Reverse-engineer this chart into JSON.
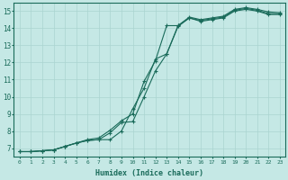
{
  "xlabel": "Humidex (Indice chaleur)",
  "bg_color": "#c5e8e5",
  "grid_color": "#aad4d0",
  "line_color": "#1a6b5a",
  "line1_x": [
    0,
    1,
    2,
    3,
    4,
    5,
    6,
    7,
    8,
    9,
    10,
    11,
    12,
    13,
    14,
    15,
    16,
    17,
    18,
    19,
    20,
    21,
    22,
    23
  ],
  "line1_y": [
    6.8,
    6.8,
    6.85,
    6.9,
    7.1,
    7.3,
    7.45,
    7.5,
    7.5,
    8.0,
    9.3,
    10.5,
    12.2,
    12.5,
    14.1,
    14.6,
    14.4,
    14.5,
    14.6,
    15.0,
    15.1,
    15.0,
    14.8,
    14.8
  ],
  "line2_x": [
    0,
    1,
    2,
    3,
    4,
    5,
    6,
    7,
    8,
    9,
    10,
    11,
    12,
    13,
    14,
    15,
    16,
    17,
    18,
    19,
    20,
    21,
    22,
    23
  ],
  "line2_y": [
    6.8,
    6.8,
    6.85,
    6.9,
    7.1,
    7.3,
    7.45,
    7.5,
    7.9,
    8.5,
    8.55,
    10.0,
    11.5,
    12.5,
    14.15,
    14.6,
    14.45,
    14.55,
    14.65,
    15.05,
    15.15,
    15.05,
    14.85,
    14.85
  ],
  "line3_x": [
    0,
    1,
    2,
    3,
    4,
    5,
    6,
    7,
    8,
    9,
    10,
    11,
    12,
    13,
    14,
    15,
    16,
    17,
    18,
    19,
    20,
    21,
    22,
    23
  ],
  "line3_y": [
    6.8,
    6.8,
    6.85,
    6.9,
    7.1,
    7.3,
    7.5,
    7.6,
    8.05,
    8.6,
    9.0,
    10.9,
    12.1,
    14.15,
    14.15,
    14.65,
    14.5,
    14.6,
    14.7,
    15.1,
    15.2,
    15.1,
    14.95,
    14.9
  ],
  "xlim": [
    -0.5,
    23.5
  ],
  "ylim": [
    6.5,
    15.5
  ],
  "yticks": [
    7,
    8,
    9,
    10,
    11,
    12,
    13,
    14,
    15
  ],
  "xticks": [
    0,
    1,
    2,
    3,
    4,
    5,
    6,
    7,
    8,
    9,
    10,
    11,
    12,
    13,
    14,
    15,
    16,
    17,
    18,
    19,
    20,
    21,
    22,
    23
  ]
}
